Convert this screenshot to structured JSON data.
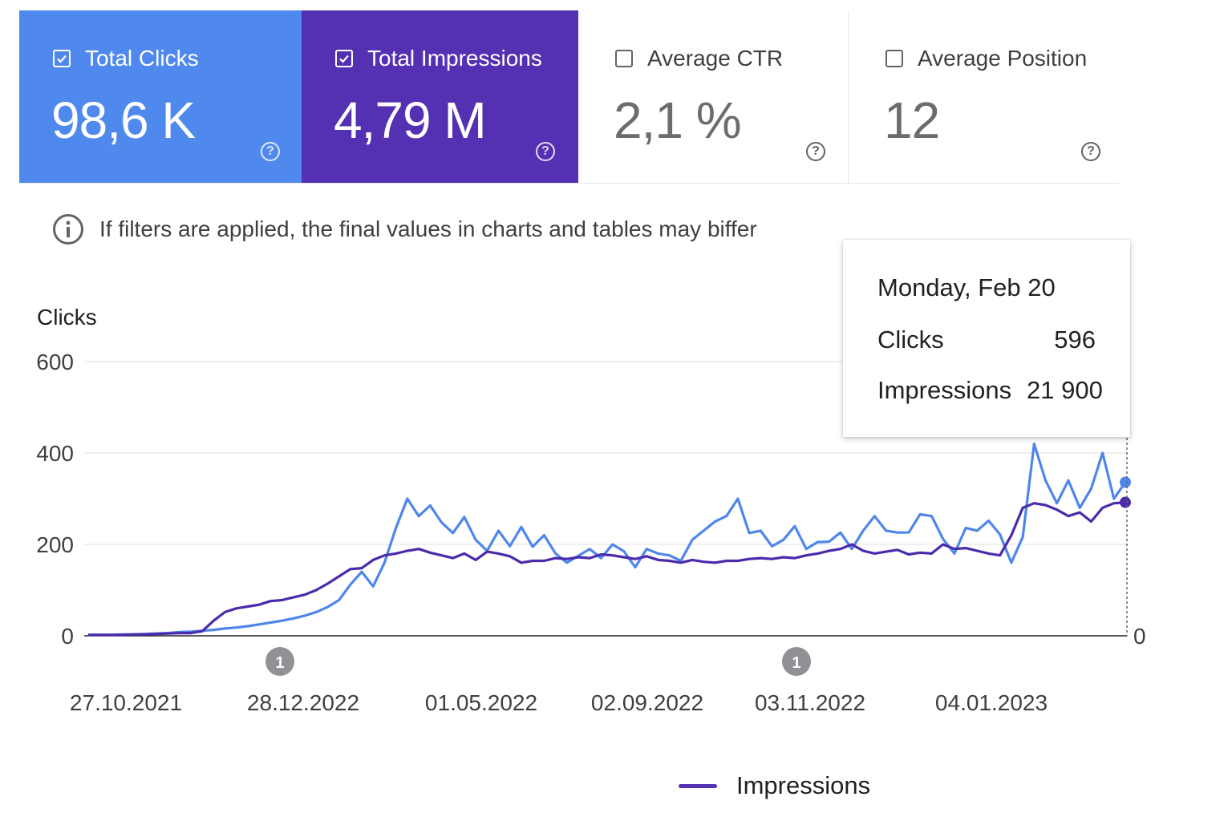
{
  "metrics": [
    {
      "label": "Total Clicks",
      "value": "98,6 K",
      "checked": true,
      "color": "#5089ee"
    },
    {
      "label": "Total Impressions",
      "value": "4,79 M",
      "checked": true,
      "color": "#5430b2"
    },
    {
      "label": "Average CTR",
      "value": "2,1 %",
      "checked": false
    },
    {
      "label": "Average Position",
      "value": "12",
      "checked": false
    }
  ],
  "help_glyph": "?",
  "note": {
    "icon": "info-icon",
    "text": "If filters are applied, the final values in charts and tables may biffer"
  },
  "tooltip": {
    "date": "Monday, Feb 20",
    "clicks_label": "Clicks",
    "clicks_value": "596",
    "impressions_label": "Impressions",
    "impressions_value": "21 900"
  },
  "legend": {
    "label": "Impressions",
    "color": "#5430b2"
  },
  "chart_data": {
    "type": "line",
    "ylabel": "Clicks",
    "ylim": [
      0,
      600
    ],
    "yticks": [
      "0",
      "200",
      "400",
      "600"
    ],
    "right_axis_ticks": [
      "0"
    ],
    "xticks": [
      "27.10.2021",
      "28.12.2022",
      "01.05.2022",
      "02.09.2022",
      "03.11.2022",
      "04.01.2023"
    ],
    "annotations": [
      {
        "label": "1",
        "near_x": "28.12.2022"
      },
      {
        "label": "1",
        "near_x": "03.11.2022"
      }
    ],
    "grid": true,
    "legend": "bottom-center",
    "series": [
      {
        "name": "Clicks",
        "color": "#4f86ec",
        "values": [
          2,
          2,
          2,
          3,
          3,
          4,
          5,
          6,
          8,
          9,
          11,
          13,
          16,
          18,
          21,
          25,
          29,
          33,
          38,
          44,
          52,
          63,
          78,
          112,
          140,
          108,
          160,
          236,
          300,
          262,
          285,
          248,
          225,
          260,
          210,
          186,
          230,
          196,
          238,
          195,
          220,
          180,
          160,
          175,
          190,
          170,
          200,
          185,
          150,
          190,
          180,
          176,
          164,
          210,
          230,
          250,
          262,
          300,
          225,
          230,
          196,
          210,
          240,
          190,
          205,
          206,
          226,
          190,
          230,
          262,
          230,
          226,
          226,
          266,
          262,
          212,
          180,
          236,
          230,
          252,
          222,
          160,
          216,
          420,
          340,
          290,
          340,
          280,
          322,
          400,
          300,
          336
        ]
      },
      {
        "name": "Impressions",
        "color": "#4b2aab",
        "values": [
          2,
          2,
          2,
          2,
          3,
          3,
          4,
          5,
          6,
          6,
          10,
          33,
          52,
          60,
          64,
          68,
          76,
          78,
          84,
          90,
          100,
          114,
          130,
          146,
          148,
          166,
          176,
          180,
          186,
          190,
          182,
          176,
          170,
          180,
          166,
          184,
          180,
          174,
          160,
          164,
          164,
          170,
          168,
          172,
          170,
          178,
          176,
          172,
          168,
          174,
          166,
          164,
          160,
          166,
          162,
          160,
          164,
          164,
          168,
          170,
          168,
          172,
          170,
          176,
          180,
          186,
          190,
          200,
          186,
          180,
          184,
          188,
          178,
          182,
          180,
          200,
          190,
          192,
          186,
          180,
          176,
          220,
          280,
          290,
          286,
          276,
          262,
          270,
          250,
          280,
          290,
          292
        ]
      }
    ]
  }
}
